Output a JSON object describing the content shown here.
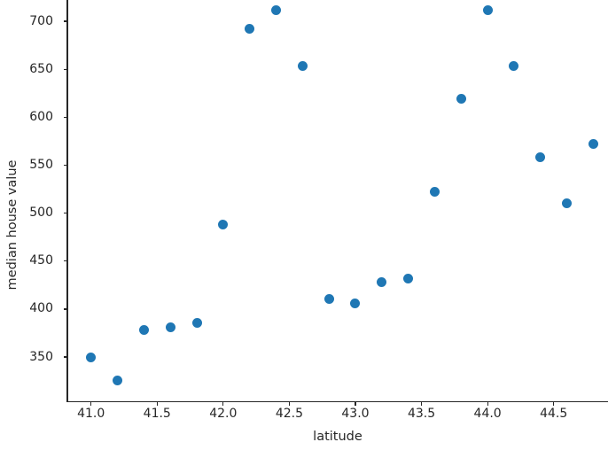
{
  "chart_data": {
    "type": "scatter",
    "title": "",
    "xlabel": "latitude",
    "ylabel": "median house value",
    "x": [
      41.0,
      41.2,
      41.4,
      41.6,
      41.8,
      42.0,
      42.2,
      42.4,
      42.6,
      42.8,
      43.0,
      43.2,
      43.4,
      43.6,
      43.8,
      44.0,
      44.2,
      44.4,
      44.6,
      44.8
    ],
    "y": [
      350,
      326,
      378,
      381,
      386,
      488,
      692,
      712,
      653,
      411,
      406,
      428,
      432,
      522,
      619,
      712,
      653,
      558,
      510,
      572
    ],
    "xlim": [
      40.821,
      44.911
    ],
    "ylim": [
      303.9,
      722.2
    ],
    "x_ticks": [
      41.0,
      41.5,
      42.0,
      42.5,
      43.0,
      43.5,
      44.0,
      44.5
    ],
    "x_tick_labels": [
      "41.0",
      "41.5",
      "42.0",
      "42.5",
      "43.0",
      "43.5",
      "44.0",
      "44.5"
    ],
    "y_ticks": [
      350,
      400,
      450,
      500,
      550,
      600,
      650,
      700
    ],
    "y_tick_labels": [
      "350",
      "400",
      "450",
      "500",
      "550",
      "600",
      "650",
      "700"
    ],
    "marker_color": "#1f77b4",
    "axis_color": "#262626",
    "grid": false,
    "legend_position": "none"
  }
}
